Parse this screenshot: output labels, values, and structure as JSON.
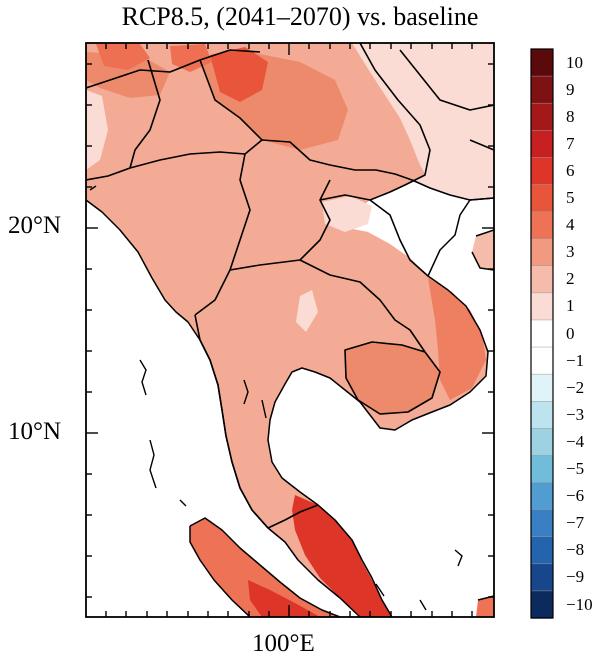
{
  "title": "RCP8.5, (2041–2070) vs. baseline",
  "axes": {
    "lat_labels": [
      "20°N",
      "10°N"
    ],
    "lon_labels": [
      "100°E"
    ]
  },
  "colorbar": {
    "labels": [
      "10",
      "9",
      "8",
      "7",
      "6",
      "5",
      "4",
      "3",
      "2",
      "1",
      "0",
      "−1",
      "−2",
      "−3",
      "−4",
      "−5",
      "−6",
      "−7",
      "−8",
      "−9",
      "−10"
    ],
    "colors": [
      "#5a0a0a",
      "#7e1212",
      "#a31818",
      "#c62020",
      "#dd3528",
      "#e8553a",
      "#ee7356",
      "#f29a80",
      "#f6bcab",
      "#fadcd4",
      "#ffffff",
      "#ffffff",
      "#dff3f8",
      "#bde4ee",
      "#9dd2e2",
      "#72bcdb",
      "#4f9dd1",
      "#3a7fc4",
      "#2463ad",
      "#18468a",
      "#0c2a5e"
    ]
  },
  "legend": {
    "levels": [
      10,
      9,
      8,
      7,
      6,
      5,
      4,
      3,
      2,
      1,
      0,
      -1,
      -2,
      -3,
      -4,
      -5,
      -6,
      -7,
      -8,
      -9,
      -10
    ]
  }
}
